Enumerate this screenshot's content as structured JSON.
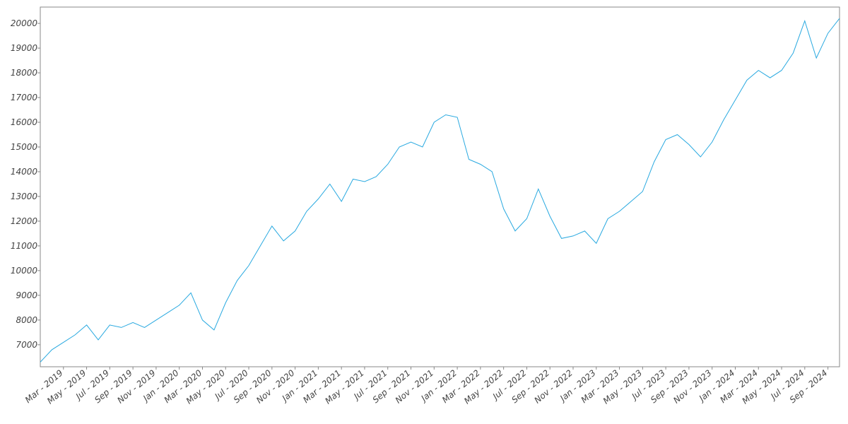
{
  "chart_data": {
    "type": "line",
    "x": [
      "2019-01",
      "2019-02",
      "2019-03",
      "2019-04",
      "2019-05",
      "2019-06",
      "2019-07",
      "2019-08",
      "2019-09",
      "2019-10",
      "2019-11",
      "2019-12",
      "2020-01",
      "2020-02",
      "2020-03",
      "2020-04",
      "2020-05",
      "2020-06",
      "2020-07",
      "2020-08",
      "2020-09",
      "2020-10",
      "2020-11",
      "2020-12",
      "2021-01",
      "2021-02",
      "2021-03",
      "2021-04",
      "2021-05",
      "2021-06",
      "2021-07",
      "2021-08",
      "2021-09",
      "2021-10",
      "2021-11",
      "2021-12",
      "2022-01",
      "2022-02",
      "2022-03",
      "2022-04",
      "2022-05",
      "2022-06",
      "2022-07",
      "2022-08",
      "2022-09",
      "2022-10",
      "2022-11",
      "2022-12",
      "2023-01",
      "2023-02",
      "2023-03",
      "2023-04",
      "2023-05",
      "2023-06",
      "2023-07",
      "2023-08",
      "2023-09",
      "2023-10",
      "2023-11",
      "2023-12",
      "2024-01",
      "2024-02",
      "2024-03",
      "2024-04",
      "2024-05",
      "2024-06",
      "2024-07",
      "2024-08",
      "2024-09",
      "2024-10"
    ],
    "values": [
      6300,
      6800,
      7100,
      7400,
      7800,
      7200,
      7800,
      7700,
      7900,
      7700,
      8000,
      8300,
      8600,
      9100,
      8000,
      7600,
      8700,
      9600,
      10200,
      11000,
      11800,
      11200,
      11600,
      12400,
      12900,
      13500,
      12800,
      13700,
      13600,
      13800,
      14300,
      15000,
      15200,
      15000,
      16000,
      16300,
      16200,
      14500,
      14300,
      14000,
      12500,
      11600,
      12100,
      13300,
      12200,
      11300,
      11400,
      11600,
      11100,
      12100,
      12400,
      12800,
      13200,
      14400,
      15300,
      15500,
      15100,
      14600,
      15200,
      16100,
      16900,
      17700,
      18100,
      17800,
      18100,
      18800,
      20100,
      18600,
      19600,
      20200
    ],
    "color": "#29a9e0",
    "xlim": [
      "2019-01",
      "2024-10"
    ],
    "xticks": [
      {
        "value": "2019-03",
        "label": "Mar - 2019"
      },
      {
        "value": "2019-05",
        "label": "May - 2019"
      },
      {
        "value": "2019-07",
        "label": "Jul - 2019"
      },
      {
        "value": "2019-09",
        "label": "Sep - 2019"
      },
      {
        "value": "2019-11",
        "label": "Nov - 2019"
      },
      {
        "value": "2020-01",
        "label": "Jan - 2020"
      },
      {
        "value": "2020-03",
        "label": "Mar - 2020"
      },
      {
        "value": "2020-05",
        "label": "May - 2020"
      },
      {
        "value": "2020-07",
        "label": "Jul - 2020"
      },
      {
        "value": "2020-09",
        "label": "Sep - 2020"
      },
      {
        "value": "2020-11",
        "label": "Nov - 2020"
      },
      {
        "value": "2021-01",
        "label": "Jan - 2021"
      },
      {
        "value": "2021-03",
        "label": "Mar - 2021"
      },
      {
        "value": "2021-05",
        "label": "May - 2021"
      },
      {
        "value": "2021-07",
        "label": "Jul - 2021"
      },
      {
        "value": "2021-09",
        "label": "Sep - 2021"
      },
      {
        "value": "2021-11",
        "label": "Nov - 2021"
      },
      {
        "value": "2022-01",
        "label": "Jan - 2022"
      },
      {
        "value": "2022-03",
        "label": "Mar - 2022"
      },
      {
        "value": "2022-05",
        "label": "May - 2022"
      },
      {
        "value": "2022-07",
        "label": "Jul - 2022"
      },
      {
        "value": "2022-09",
        "label": "Sep - 2022"
      },
      {
        "value": "2022-11",
        "label": "Nov - 2022"
      },
      {
        "value": "2023-01",
        "label": "Jan - 2023"
      },
      {
        "value": "2023-03",
        "label": "Mar - 2023"
      },
      {
        "value": "2023-05",
        "label": "May - 2023"
      },
      {
        "value": "2023-07",
        "label": "Jul - 2023"
      },
      {
        "value": "2023-09",
        "label": "Sep - 2023"
      },
      {
        "value": "2023-11",
        "label": "Nov - 2023"
      },
      {
        "value": "2024-01",
        "label": "Jan - 2024"
      },
      {
        "value": "2024-03",
        "label": "Mar - 2024"
      },
      {
        "value": "2024-05",
        "label": "May - 2024"
      },
      {
        "value": "2024-07",
        "label": "Jul - 2024"
      },
      {
        "value": "2024-09",
        "label": "Sep - 2024"
      }
    ],
    "ylim": [
      6110,
      20660
    ],
    "yticks": [
      7000,
      8000,
      9000,
      10000,
      11000,
      12000,
      13000,
      14000,
      15000,
      16000,
      17000,
      18000,
      19000,
      20000
    ]
  }
}
